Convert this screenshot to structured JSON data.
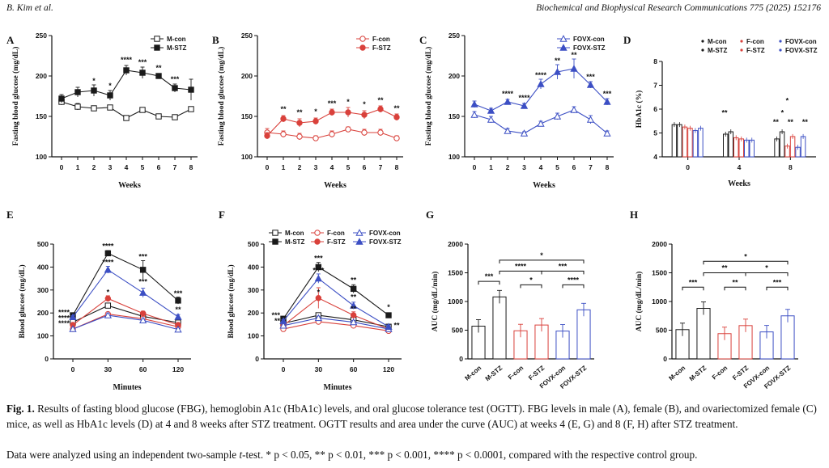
{
  "header": {
    "left": "B. Kim et al.",
    "right": "Biochemical and Biophysical Research Communications 775 (2025) 152176"
  },
  "caption": {
    "fig_label": "Fig. 1.",
    "text": "Results of fasting blood glucose (FBG), hemoglobin A1c (HbA1c) levels, and oral glucose tolerance test (OGTT). FBG levels in male (A), female (B), and ovariectomized female (C) mice, as well as HbA1c levels (D) at 4 and 8 weeks after STZ treatment. OGTT results and area under the curve (AUC) at weeks 4 (E, G) and 8 (F, H) after STZ treatment.",
    "stats_pre": "Data were analyzed using an independent two-sample ",
    "stats_t": "t",
    "stats_post": "-test. * p < 0.05, ** p < 0.01, *** p < 0.001, **** p < 0.0001, compared with the respective control group."
  },
  "colors": {
    "black": "#1a1a1a",
    "red": "#d9413b",
    "blue": "#3c4fc4",
    "grey": "#777777"
  },
  "chart_data": [
    {
      "panel": "A",
      "type": "line",
      "xlabel": "Weeks",
      "ylabel": "Fasting blood glucose (mg/dL)",
      "ylim": [
        100,
        250
      ],
      "yticks": [
        100,
        150,
        200,
        250
      ],
      "x": [
        0,
        1,
        2,
        3,
        4,
        5,
        6,
        7,
        8
      ],
      "series": [
        {
          "name": "M-con",
          "color": "black",
          "marker": "square-open",
          "values": [
            168,
            162,
            160,
            161,
            148,
            158,
            150,
            149,
            159
          ],
          "err": [
            4,
            4,
            3,
            3,
            3,
            3,
            2,
            2,
            3
          ]
        },
        {
          "name": "M-STZ",
          "color": "black",
          "marker": "square-filled",
          "values": [
            172,
            180,
            182,
            176,
            207,
            204,
            200,
            185,
            183
          ],
          "err": [
            5,
            6,
            7,
            6,
            6,
            7,
            3,
            5,
            13
          ]
        }
      ],
      "annotations": [
        {
          "x": 2,
          "y": 191,
          "text": "*"
        },
        {
          "x": 3,
          "y": 185,
          "text": "*"
        },
        {
          "x": 4,
          "y": 217,
          "text": "****"
        },
        {
          "x": 5,
          "y": 214,
          "text": "***"
        },
        {
          "x": 6,
          "y": 207,
          "text": "**"
        },
        {
          "x": 7,
          "y": 193,
          "text": "***"
        }
      ]
    },
    {
      "panel": "B",
      "type": "line",
      "xlabel": "Weeks",
      "ylabel": "Fasting blood glucose (mg/dL)",
      "ylim": [
        100,
        250
      ],
      "yticks": [
        100,
        150,
        200,
        250
      ],
      "x": [
        0,
        1,
        2,
        3,
        4,
        5,
        6,
        7,
        8
      ],
      "series": [
        {
          "name": "F-con",
          "color": "red",
          "marker": "circle-open",
          "values": [
            130,
            128,
            125,
            123,
            128,
            134,
            130,
            130,
            123
          ],
          "err": [
            5,
            4,
            4,
            3,
            4,
            3,
            4,
            4,
            3
          ]
        },
        {
          "name": "F-STZ",
          "color": "red",
          "marker": "circle-filled",
          "values": [
            126,
            147,
            142,
            144,
            155,
            155,
            152,
            159,
            149
          ],
          "err": [
            4,
            4,
            5,
            4,
            4,
            6,
            5,
            4,
            4
          ]
        }
      ],
      "annotations": [
        {
          "x": 1,
          "y": 156,
          "text": "**"
        },
        {
          "x": 2,
          "y": 152,
          "text": "**"
        },
        {
          "x": 3,
          "y": 153,
          "text": "*"
        },
        {
          "x": 4,
          "y": 163,
          "text": "***"
        },
        {
          "x": 5,
          "y": 165,
          "text": "*"
        },
        {
          "x": 6,
          "y": 162,
          "text": "*"
        },
        {
          "x": 7,
          "y": 167,
          "text": "**"
        },
        {
          "x": 8,
          "y": 157,
          "text": "**"
        }
      ]
    },
    {
      "panel": "C",
      "type": "line",
      "xlabel": "Weeks",
      "ylabel": "Fasting blood glucose (mg/dL)",
      "ylim": [
        100,
        250
      ],
      "yticks": [
        100,
        150,
        200,
        250
      ],
      "x": [
        0,
        1,
        2,
        3,
        4,
        5,
        6,
        7,
        8
      ],
      "series": [
        {
          "name": "FOVX-con",
          "color": "blue",
          "marker": "triangle-open",
          "values": [
            152,
            146,
            132,
            129,
            141,
            150,
            158,
            146,
            129
          ],
          "err": [
            4,
            4,
            3,
            2,
            3,
            4,
            4,
            5,
            3
          ]
        },
        {
          "name": "FOVX-STZ",
          "color": "blue",
          "marker": "triangle-filled",
          "values": [
            165,
            157,
            168,
            163,
            190,
            205,
            209,
            189,
            168
          ],
          "err": [
            4,
            3,
            3,
            3,
            6,
            9,
            12,
            4,
            4
          ]
        }
      ],
      "annotations": [
        {
          "x": 2,
          "y": 175,
          "text": "****"
        },
        {
          "x": 3,
          "y": 170,
          "text": "****"
        },
        {
          "x": 4,
          "y": 198,
          "text": "****"
        },
        {
          "x": 5,
          "y": 216,
          "text": "**"
        },
        {
          "x": 6,
          "y": 223,
          "text": "**"
        },
        {
          "x": 7,
          "y": 196,
          "text": "***"
        },
        {
          "x": 8,
          "y": 175,
          "text": "***"
        }
      ]
    },
    {
      "panel": "D",
      "type": "bar",
      "xlabel": "Weeks",
      "ylabel": "HbA1c (%)",
      "ylim": [
        4,
        8
      ],
      "yticks": [
        4,
        5,
        6,
        7,
        8
      ],
      "categories": [
        "0",
        "4",
        "8"
      ],
      "series": [
        {
          "name": "M-con",
          "color": "black",
          "fill": false,
          "values": [
            5.35,
            4.95,
            4.75
          ]
        },
        {
          "name": "M-STZ",
          "color": "black",
          "fill": false,
          "values": [
            5.35,
            5.05,
            5.05
          ]
        },
        {
          "name": "F-con",
          "color": "red",
          "fill": false,
          "values": [
            5.25,
            4.8,
            4.45
          ]
        },
        {
          "name": "F-STZ",
          "color": "red",
          "fill": false,
          "values": [
            5.2,
            4.75,
            4.85
          ]
        },
        {
          "name": "FOVX-con",
          "color": "blue",
          "fill": false,
          "values": [
            5.1,
            4.7,
            4.4
          ]
        },
        {
          "name": "FOVX-STZ",
          "color": "blue",
          "fill": false,
          "values": [
            5.2,
            4.7,
            4.85
          ]
        }
      ]
    },
    {
      "panel": "E",
      "type": "line",
      "xlabel": "Minutes",
      "ylabel": "Blood glucose (mg/dL)",
      "ylim": [
        0,
        500
      ],
      "yticks": [
        0,
        100,
        200,
        300,
        400,
        500
      ],
      "x": [
        0,
        30,
        60,
        120
      ],
      "series": [
        {
          "name": "M-con",
          "color": "black",
          "marker": "square-open",
          "values": [
            160,
            232,
            185,
            158
          ],
          "err": [
            5,
            10,
            8,
            6
          ]
        },
        {
          "name": "M-STZ",
          "color": "black",
          "marker": "square-filled",
          "values": [
            190,
            460,
            388,
            254
          ],
          "err": [
            6,
            12,
            40,
            15
          ]
        },
        {
          "name": "F-con",
          "color": "red",
          "marker": "circle-open",
          "values": [
            130,
            195,
            175,
            140
          ],
          "err": [
            4,
            8,
            8,
            6
          ]
        },
        {
          "name": "F-STZ",
          "color": "red",
          "marker": "circle-filled",
          "values": [
            148,
            263,
            198,
            148
          ],
          "err": [
            5,
            12,
            10,
            7
          ]
        },
        {
          "name": "FOVX-con",
          "color": "blue",
          "marker": "triangle-open",
          "values": [
            130,
            190,
            168,
            128
          ],
          "err": [
            4,
            8,
            7,
            5
          ]
        },
        {
          "name": "FOVX-STZ",
          "color": "blue",
          "marker": "triangle-filled",
          "values": [
            182,
            388,
            288,
            183
          ],
          "err": [
            6,
            15,
            20,
            10
          ]
        }
      ],
      "annotations": [
        {
          "x": 30,
          "y": 480,
          "text": "****"
        },
        {
          "x": 30,
          "y": 410,
          "text": "****"
        },
        {
          "x": 30,
          "y": 280,
          "text": "*"
        },
        {
          "x": 60,
          "y": 435,
          "text": "***"
        },
        {
          "x": 60,
          "y": 325,
          "text": "***"
        },
        {
          "x": 120,
          "y": 275,
          "text": "***"
        },
        {
          "x": 120,
          "y": 205,
          "text": "**"
        },
        {
          "x": 0,
          "y": 192,
          "text": "****"
        },
        {
          "x": 0,
          "y": 168,
          "text": "****"
        },
        {
          "x": 0,
          "y": 144,
          "text": "****"
        }
      ]
    },
    {
      "panel": "F",
      "type": "line",
      "xlabel": "Minutes",
      "ylabel": "Blood glucose (mg/dL)",
      "ylim": [
        0,
        500
      ],
      "yticks": [
        0,
        100,
        200,
        300,
        400,
        500
      ],
      "x": [
        0,
        30,
        60,
        120
      ],
      "series": [
        {
          "name": "M-con",
          "color": "black",
          "marker": "square-open",
          "values": [
            155,
            190,
            170,
            140
          ],
          "err": [
            5,
            10,
            8,
            6
          ]
        },
        {
          "name": "M-STZ",
          "color": "black",
          "marker": "square-filled",
          "values": [
            175,
            400,
            305,
            190
          ],
          "err": [
            6,
            20,
            18,
            8
          ]
        },
        {
          "name": "F-con",
          "color": "red",
          "marker": "circle-open",
          "values": [
            130,
            162,
            145,
            122
          ],
          "err": [
            4,
            8,
            7,
            5
          ]
        },
        {
          "name": "F-STZ",
          "color": "red",
          "marker": "circle-filled",
          "values": [
            145,
            265,
            190,
            130
          ],
          "err": [
            5,
            45,
            15,
            8
          ]
        },
        {
          "name": "FOVX-con",
          "color": "blue",
          "marker": "triangle-open",
          "values": [
            145,
            178,
            160,
            130
          ],
          "err": [
            4,
            8,
            7,
            5
          ]
        },
        {
          "name": "FOVX-STZ",
          "color": "blue",
          "marker": "triangle-filled",
          "values": [
            165,
            350,
            232,
            140
          ],
          "err": [
            6,
            20,
            15,
            8
          ]
        }
      ],
      "annotations": [
        {
          "x": 30,
          "y": 428,
          "text": "***"
        },
        {
          "x": 30,
          "y": 375,
          "text": "****"
        },
        {
          "x": 30,
          "y": 280,
          "text": "*"
        },
        {
          "x": 60,
          "y": 333,
          "text": "**"
        },
        {
          "x": 60,
          "y": 258,
          "text": "**"
        },
        {
          "x": 60,
          "y": 208,
          "text": "**"
        },
        {
          "x": 120,
          "y": 215,
          "text": "*"
        },
        {
          "x": 120,
          "y": 135,
          "text": "**"
        },
        {
          "x": 0,
          "y": 180,
          "text": "***"
        },
        {
          "x": 0,
          "y": 155,
          "text": "**"
        }
      ]
    },
    {
      "panel": "G",
      "type": "bar",
      "xlabel": "",
      "ylabel": "AUC (mg/dL/min)",
      "ylim": [
        0,
        2000
      ],
      "yticks": [
        0,
        500,
        1000,
        1500,
        2000
      ],
      "categories": [
        "M-con",
        "M-STZ",
        "F-con",
        "F-STZ",
        "FOVX-con",
        "FOVX-STZ"
      ],
      "colors": [
        "black",
        "black",
        "red",
        "red",
        "blue",
        "blue"
      ],
      "values": [
        570,
        1080,
        490,
        590,
        485,
        855
      ],
      "brackets": [
        {
          "from": 0,
          "to": 1,
          "y": 1350,
          "text": "***"
        },
        {
          "from": 1,
          "to": 3,
          "y": 1530,
          "text": "****"
        },
        {
          "from": 1,
          "to": 5,
          "y": 1720,
          "text": "*"
        },
        {
          "from": 2,
          "to": 3,
          "y": 1290,
          "text": "*"
        },
        {
          "from": 3,
          "to": 5,
          "y": 1530,
          "text": "***"
        },
        {
          "from": 4,
          "to": 5,
          "y": 1290,
          "text": "****"
        }
      ]
    },
    {
      "panel": "H",
      "type": "bar",
      "xlabel": "",
      "ylabel": "AUC (mg/dL/min)",
      "ylim": [
        0,
        2000
      ],
      "yticks": [
        0,
        500,
        1000,
        1500,
        2000
      ],
      "categories": [
        "M-con",
        "M-STZ",
        "F-con",
        "F-STZ",
        "FOVX-con",
        "FOVX-STZ"
      ],
      "colors": [
        "black",
        "black",
        "red",
        "red",
        "blue",
        "blue"
      ],
      "values": [
        510,
        880,
        440,
        580,
        470,
        750
      ],
      "brackets": [
        {
          "from": 0,
          "to": 1,
          "y": 1250,
          "text": "***"
        },
        {
          "from": 1,
          "to": 3,
          "y": 1500,
          "text": "**"
        },
        {
          "from": 1,
          "to": 5,
          "y": 1700,
          "text": "*"
        },
        {
          "from": 2,
          "to": 3,
          "y": 1250,
          "text": "**"
        },
        {
          "from": 3,
          "to": 5,
          "y": 1500,
          "text": "*"
        },
        {
          "from": 4,
          "to": 5,
          "y": 1250,
          "text": "***"
        }
      ]
    }
  ]
}
